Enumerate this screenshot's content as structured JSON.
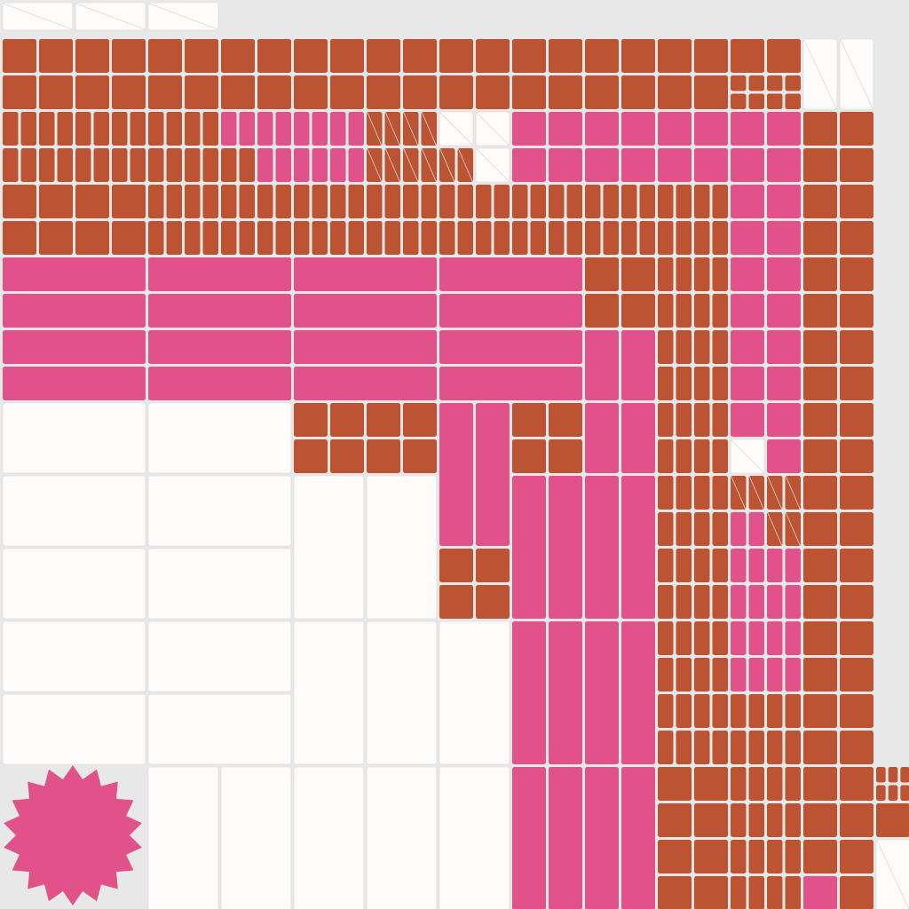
{
  "palette": {
    "background": "#e8e8e8",
    "brown": "#bc5434",
    "pink": "#e05289",
    "white": "#fefcfb",
    "stroke": "#d8d8d8"
  },
  "shape_names": {
    "seal": "pink-starburst-seal"
  }
}
